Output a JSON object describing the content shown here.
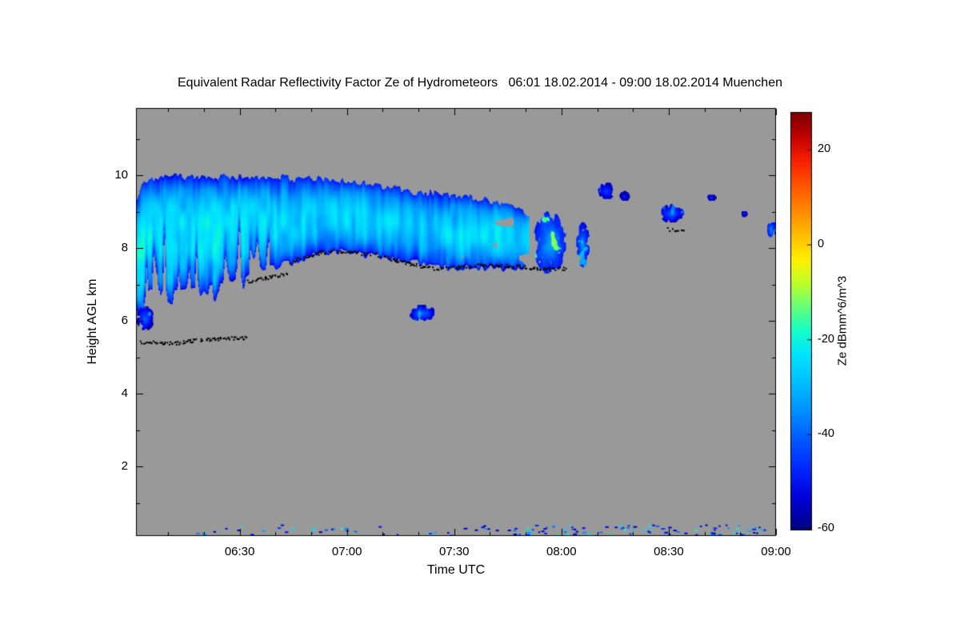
{
  "chart_data": {
    "type": "heatmap",
    "title": "Equivalent Radar Reflectivity Factor Ze of Hydrometeors   06:01 18.02.2014 - 09:00 18.02.2014 Muenchen",
    "xlabel": "Time UTC",
    "ylabel": "Height AGL km",
    "station": "Muenchen",
    "time_start": "06:01 18.02.2014",
    "time_end": "09:00 18.02.2014",
    "x_range_hours": [
      6.0167,
      9.0
    ],
    "y_range_km": [
      0.1,
      11.85
    ],
    "x_ticks": [
      {
        "hour": 6.5,
        "label": "06:30"
      },
      {
        "hour": 7.0,
        "label": "07:00"
      },
      {
        "hour": 7.5,
        "label": "07:30"
      },
      {
        "hour": 8.0,
        "label": "08:00"
      },
      {
        "hour": 8.5,
        "label": "08:30"
      },
      {
        "hour": 9.0,
        "label": "09:00"
      }
    ],
    "x_minor_tick_step_hours": 0.166667,
    "y_ticks": [
      {
        "km": 2,
        "label": "2"
      },
      {
        "km": 4,
        "label": "4"
      },
      {
        "km": 6,
        "label": "6"
      },
      {
        "km": 8,
        "label": "8"
      },
      {
        "km": 10,
        "label": "10"
      }
    ],
    "y_minor_tick_step_km": 1,
    "plot_background": "#999999",
    "grid": false,
    "colorbar": {
      "label": "Ze dBmm^6/m^3",
      "range": [
        -60,
        28
      ],
      "ticks": [
        {
          "value": 20,
          "label": "20"
        },
        {
          "value": 0,
          "label": "0"
        },
        {
          "value": -20,
          "label": "-20"
        },
        {
          "value": -40,
          "label": "-40"
        },
        {
          "value": -60,
          "label": "-60"
        }
      ],
      "stops": [
        [
          -60,
          "#000080"
        ],
        [
          -53,
          "#0000DC"
        ],
        [
          -47,
          "#0028FF"
        ],
        [
          -41,
          "#0058FF"
        ],
        [
          -35,
          "#0090FF"
        ],
        [
          -29,
          "#00BEFF"
        ],
        [
          -23,
          "#00E4FF"
        ],
        [
          -18,
          "#14FFC8"
        ],
        [
          -13,
          "#64FF78"
        ],
        [
          -8,
          "#BEFF28"
        ],
        [
          -3,
          "#FFF000"
        ],
        [
          1,
          "#FFC800"
        ],
        [
          6,
          "#FF9600"
        ],
        [
          12,
          "#FF5A00"
        ],
        [
          18,
          "#F81E00"
        ],
        [
          23,
          "#C00000"
        ],
        [
          28,
          "#7C0000"
        ]
      ]
    },
    "cloud": {
      "main_layer_profile": [
        [
          6.02,
          9.35,
          6.3
        ],
        [
          6.05,
          9.7,
          6.6
        ],
        [
          6.08,
          9.9,
          6.9
        ],
        [
          6.15,
          10.0,
          6.85
        ],
        [
          6.25,
          9.95,
          6.9
        ],
        [
          6.35,
          9.9,
          7.0
        ],
        [
          6.45,
          9.95,
          7.1
        ],
        [
          6.55,
          9.9,
          7.3
        ],
        [
          6.65,
          9.95,
          7.5
        ],
        [
          6.75,
          9.9,
          7.65
        ],
        [
          6.85,
          9.9,
          7.85
        ],
        [
          6.95,
          9.85,
          7.95
        ],
        [
          7.05,
          9.8,
          7.85
        ],
        [
          7.15,
          9.7,
          7.8
        ],
        [
          7.25,
          9.6,
          7.7
        ],
        [
          7.35,
          9.5,
          7.6
        ],
        [
          7.45,
          9.45,
          7.5
        ],
        [
          7.55,
          9.4,
          7.5
        ],
        [
          7.65,
          9.3,
          7.5
        ],
        [
          7.75,
          9.15,
          7.45
        ],
        [
          7.85,
          9.0,
          7.4
        ]
      ],
      "typical_dbz_range": [
        -55,
        -18
      ],
      "patches": [
        [
          7.87,
          8.02,
          7.3,
          9.0,
          -32,
          -9
        ],
        [
          8.07,
          8.13,
          7.5,
          8.7,
          -36,
          -26
        ],
        [
          7.29,
          7.41,
          6.0,
          6.45,
          -38,
          -30
        ],
        [
          8.17,
          8.25,
          9.35,
          9.8,
          -42,
          -34
        ],
        [
          8.27,
          8.32,
          9.3,
          9.55,
          -44,
          -38
        ],
        [
          8.46,
          8.57,
          8.7,
          9.2,
          -40,
          -32
        ],
        [
          8.68,
          8.72,
          9.3,
          9.5,
          -45,
          -40
        ],
        [
          8.84,
          8.87,
          8.85,
          9.05,
          -46,
          -42
        ],
        [
          8.96,
          9.0,
          8.3,
          8.75,
          -34,
          -26
        ],
        [
          6.02,
          6.1,
          5.75,
          6.4,
          -40,
          -30
        ]
      ]
    },
    "ceilometer_dots": {
      "color": "#000000",
      "tracks": [
        [
          [
            6.03,
            5.45
          ],
          [
            6.18,
            5.4
          ],
          [
            6.32,
            5.5
          ],
          [
            6.45,
            5.55
          ],
          [
            6.53,
            5.55
          ]
        ],
        [
          [
            6.53,
            7.1
          ],
          [
            6.62,
            7.2
          ],
          [
            6.72,
            7.3
          ]
        ],
        [
          [
            6.73,
            7.65
          ],
          [
            6.82,
            7.8
          ],
          [
            6.92,
            7.95
          ],
          [
            7.02,
            7.9
          ],
          [
            7.12,
            7.85
          ],
          [
            7.22,
            7.7
          ],
          [
            7.32,
            7.55
          ],
          [
            7.42,
            7.45
          ],
          [
            7.52,
            7.5
          ],
          [
            7.62,
            7.55
          ],
          [
            7.72,
            7.55
          ],
          [
            7.82,
            7.5
          ],
          [
            7.92,
            7.45
          ],
          [
            8.02,
            7.45
          ]
        ],
        [
          [
            8.47,
            8.6
          ],
          [
            8.52,
            8.5
          ],
          [
            8.57,
            8.55
          ]
        ]
      ]
    },
    "surface_clutter": {
      "t_range": [
        6.05,
        8.95
      ],
      "h_range": [
        0.12,
        0.42
      ],
      "count": 140,
      "dbz_range": [
        -56,
        -18
      ]
    }
  }
}
